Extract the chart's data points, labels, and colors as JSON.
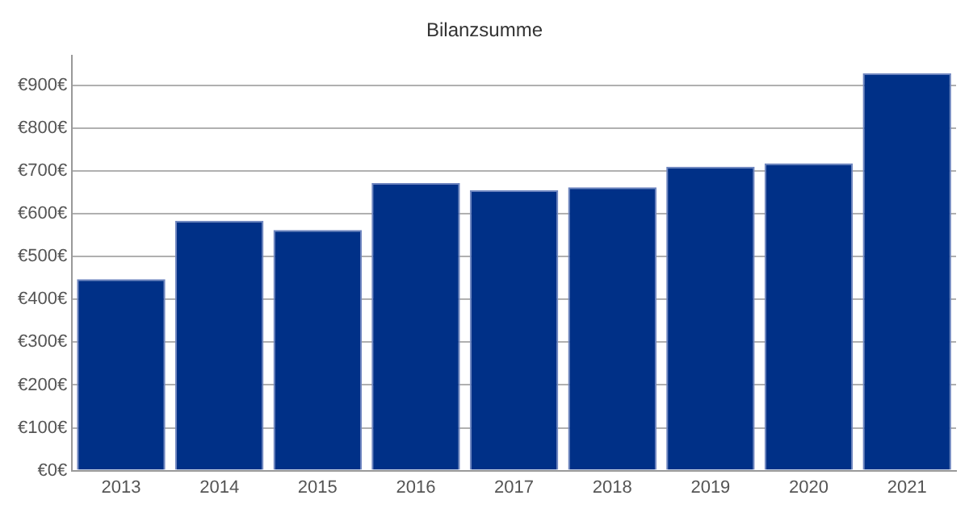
{
  "chart_data": {
    "type": "bar",
    "title": "Bilanzsumme",
    "categories": [
      "2013",
      "2014",
      "2015",
      "2016",
      "2017",
      "2018",
      "2019",
      "2020",
      "2021"
    ],
    "values": [
      447,
      584,
      562,
      672,
      655,
      662,
      710,
      718,
      928
    ],
    "color": "#003087",
    "ylim": [
      0,
      970
    ],
    "yticks": [
      {
        "value": 0,
        "label": "€0€"
      },
      {
        "value": 100,
        "label": "€100€"
      },
      {
        "value": 200,
        "label": "€200€"
      },
      {
        "value": 300,
        "label": "€300€"
      },
      {
        "value": 400,
        "label": "€400€"
      },
      {
        "value": 500,
        "label": "€500€"
      },
      {
        "value": 600,
        "label": "€600€"
      },
      {
        "value": 700,
        "label": "€700€"
      },
      {
        "value": 800,
        "label": "€800€"
      },
      {
        "value": 900,
        "label": "€900€"
      }
    ],
    "grid": "y",
    "legend": false
  }
}
